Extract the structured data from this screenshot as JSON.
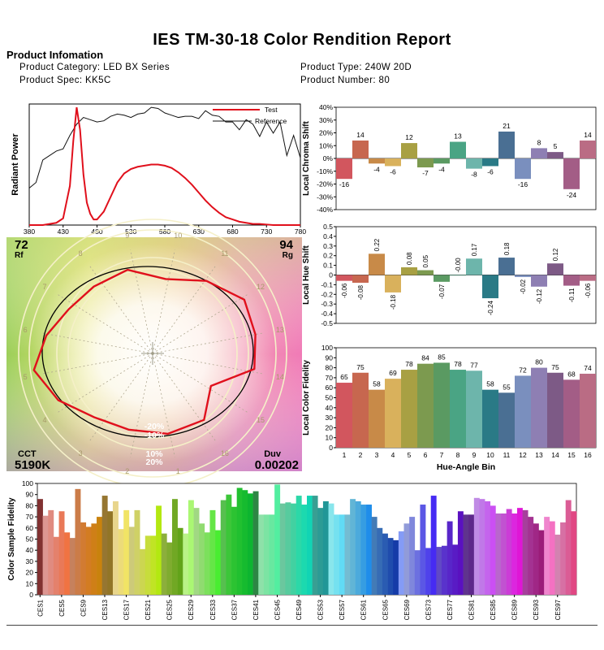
{
  "report": {
    "title": "IES TM-30-18 Color Rendition Report",
    "section_title": "Product Infomation",
    "category": "Product Category: LED BX Series",
    "spec": "Product Spec: KK5C",
    "type": "Product Type: 240W 20D",
    "number": "Product Number: 80"
  },
  "colors": {
    "test": "#e0101c",
    "reference": "#111111",
    "bins": [
      "#d2565e",
      "#c7674f",
      "#c88a48",
      "#d9b15c",
      "#a8a043",
      "#7c9a4f",
      "#5a9a62",
      "#4aa484",
      "#6db5ab",
      "#2a7a86",
      "#4a6f93",
      "#7a8fbe",
      "#8e7fb3",
      "#7d5a86",
      "#a35d86",
      "#ba6c84"
    ]
  },
  "chart_data": [
    {
      "name": "spectral-power",
      "type": "line",
      "ylabel": "Radiant Power",
      "xlabel": "",
      "xlim": [
        380,
        780
      ],
      "ylim": [
        0,
        1.08
      ],
      "xticks": [
        380,
        430,
        480,
        530,
        580,
        630,
        680,
        730,
        780
      ],
      "legend": [
        "Test",
        "Reference"
      ],
      "series": [
        {
          "name": "Test",
          "x": [
            380,
            400,
            420,
            430,
            440,
            445,
            450,
            455,
            460,
            465,
            470,
            475,
            480,
            490,
            500,
            510,
            520,
            530,
            540,
            550,
            560,
            570,
            580,
            590,
            600,
            610,
            620,
            630,
            640,
            650,
            660,
            670,
            680,
            690,
            700,
            710,
            720,
            730,
            740,
            750,
            760,
            780
          ],
          "y": [
            0,
            0,
            0.02,
            0.06,
            0.35,
            0.75,
            1.05,
            0.85,
            0.45,
            0.2,
            0.1,
            0.05,
            0.05,
            0.12,
            0.25,
            0.38,
            0.46,
            0.5,
            0.52,
            0.53,
            0.54,
            0.54,
            0.53,
            0.51,
            0.47,
            0.42,
            0.36,
            0.29,
            0.22,
            0.16,
            0.11,
            0.07,
            0.05,
            0.03,
            0.02,
            0.01,
            0.01,
            0.005,
            0,
            0,
            0,
            0
          ]
        },
        {
          "name": "Reference",
          "x": [
            380,
            390,
            400,
            410,
            420,
            430,
            440,
            450,
            460,
            470,
            480,
            490,
            500,
            510,
            520,
            530,
            540,
            550,
            560,
            570,
            580,
            590,
            600,
            610,
            620,
            630,
            640,
            650,
            660,
            670,
            680,
            690,
            700,
            710,
            720,
            730,
            740,
            750,
            760,
            770,
            780
          ],
          "y": [
            0.33,
            0.38,
            0.58,
            0.62,
            0.66,
            0.68,
            0.8,
            0.9,
            0.96,
            0.94,
            0.92,
            0.93,
            0.97,
            0.99,
            0.98,
            0.96,
            0.99,
            1.0,
            1.05,
            1.04,
            1.0,
            0.98,
            0.96,
            0.97,
            0.97,
            0.95,
            1.02,
            0.98,
            0.97,
            0.92,
            0.92,
            0.85,
            0.94,
            0.9,
            0.79,
            0.92,
            0.82,
            0.92,
            0.62,
            0.8,
            0.6
          ]
        }
      ]
    },
    {
      "name": "local-chroma-shift",
      "type": "bar",
      "ylabel": "Local Chroma Shift",
      "categories": [
        "1",
        "2",
        "3",
        "4",
        "5",
        "6",
        "7",
        "8",
        "9",
        "10",
        "11",
        "12",
        "13",
        "14",
        "15",
        "16"
      ],
      "values": [
        -16,
        14,
        -4,
        -6,
        12,
        -7,
        -4,
        13,
        -8,
        -6,
        21,
        -16,
        8,
        5,
        -24,
        14
      ],
      "labels": [
        "-16",
        "14",
        "-4",
        "-6",
        "12",
        "-7",
        "-4",
        "13",
        "-8",
        "-6",
        "21",
        "-16",
        "8",
        "5",
        "-24",
        "14"
      ],
      "ylim": [
        -40,
        40
      ],
      "yticks": [
        "40%",
        "30%",
        "20%",
        "10%",
        "0%",
        "-10%",
        "-20%",
        "-30%",
        "-40%"
      ]
    },
    {
      "name": "local-hue-shift",
      "type": "bar",
      "ylabel": "Local Hue Shift",
      "categories": [
        "1",
        "2",
        "3",
        "4",
        "5",
        "6",
        "7",
        "8",
        "9",
        "10",
        "11",
        "12",
        "13",
        "14",
        "15",
        "16"
      ],
      "values": [
        -0.06,
        -0.08,
        0.22,
        -0.18,
        0.08,
        0.05,
        -0.07,
        -0.0,
        0.17,
        -0.24,
        0.18,
        -0.02,
        -0.12,
        0.12,
        -0.11,
        -0.06
      ],
      "labels": [
        "-0.06",
        "-0.08",
        "0.22",
        "-0.18",
        "0.08",
        "0.05",
        "-0.07",
        "-0.00",
        "0.17",
        "-0.24",
        "0.18",
        "-0.02",
        "-0.12",
        "0.12",
        "-0.11",
        "-0.06"
      ],
      "ylim": [
        -0.5,
        0.5
      ],
      "yticks": [
        "0.5",
        "0.4",
        "0.3",
        "0.2",
        "0.1",
        "0",
        "-0.1",
        "-0.2",
        "-0.3",
        "-0.4",
        "-0.5"
      ]
    },
    {
      "name": "local-color-fidelity",
      "type": "bar",
      "ylabel": "Local Color Fidelity",
      "xlabel": "Hue-Angle Bin",
      "categories": [
        "1",
        "2",
        "3",
        "4",
        "5",
        "6",
        "7",
        "8",
        "9",
        "10",
        "11",
        "12",
        "13",
        "14",
        "15",
        "16"
      ],
      "values": [
        65,
        75,
        58,
        69,
        78,
        84,
        85,
        78,
        77,
        58,
        55,
        72,
        80,
        75,
        68,
        74
      ],
      "ylim": [
        0,
        100
      ],
      "yticks": [
        "100",
        "90",
        "80",
        "70",
        "60",
        "50",
        "40",
        "30",
        "20",
        "10",
        "0"
      ]
    },
    {
      "name": "color-vector-graphic",
      "type": "other",
      "rf_label": "Rf",
      "rf_value": "72",
      "rg_label": "Rg",
      "rg_value": "94",
      "cct_label": "CCT",
      "cct_value": "5190K",
      "duv_label": "Duv",
      "duv_value": "0.00202",
      "ring_labels": [
        "-20%",
        "-10%",
        "10%",
        "20%"
      ],
      "bin_labels": [
        "1",
        "2",
        "3",
        "4",
        "5",
        "6",
        "7",
        "8",
        "9",
        "10",
        "11",
        "12",
        "13",
        "14",
        "15",
        "16"
      ],
      "test_radius_ratio": [
        0.98,
        0.93,
        0.92,
        1.02,
        1.1,
        0.98,
        0.9,
        0.92,
        0.98,
        0.87,
        1.0,
        1.1,
        1.04,
        1.03,
        0.72,
        0.96
      ],
      "reference_radius_ratio": [
        1,
        1,
        1,
        1,
        1,
        1,
        1,
        1,
        1,
        1,
        1,
        1,
        1,
        1,
        1,
        1
      ]
    },
    {
      "name": "color-sample-fidelity",
      "type": "bar",
      "ylabel": "Color Sample Fidelity",
      "ylim": [
        0,
        100
      ],
      "yticks": [
        "100",
        "90",
        "80",
        "70",
        "60",
        "50",
        "40",
        "30",
        "20",
        "10",
        "0"
      ],
      "xticks": [
        "CES1",
        "CES5",
        "CES9",
        "CES13",
        "CES17",
        "CES21",
        "CES25",
        "CES29",
        "CES33",
        "CES37",
        "CES41",
        "CES45",
        "CES49",
        "CES53",
        "CES57",
        "CES61",
        "CES65",
        "CES69",
        "CES73",
        "CES77",
        "CES81",
        "CES85",
        "CES89",
        "CES93",
        "CES97"
      ],
      "values": [
        86,
        71,
        76,
        52,
        75,
        56,
        51,
        95,
        65,
        61,
        64,
        70,
        89,
        75,
        84,
        59,
        76,
        61,
        76,
        41,
        53,
        53,
        80,
        55,
        47,
        86,
        60,
        55,
        85,
        78,
        64,
        56,
        76,
        58,
        85,
        90,
        79,
        96,
        94,
        91,
        93,
        72,
        72,
        72,
        99,
        82,
        83,
        82,
        89,
        81,
        89,
        89,
        78,
        84,
        82,
        72,
        72,
        72,
        86,
        84,
        81,
        81,
        70,
        60,
        55,
        51,
        49,
        57,
        64,
        70,
        40,
        81,
        42,
        89,
        43,
        44,
        66,
        45,
        75,
        72,
        72,
        87,
        86,
        84,
        80,
        73,
        73,
        77,
        73,
        78,
        76,
        70,
        64,
        58,
        70,
        66,
        54,
        65,
        85,
        75
      ]
    }
  ]
}
